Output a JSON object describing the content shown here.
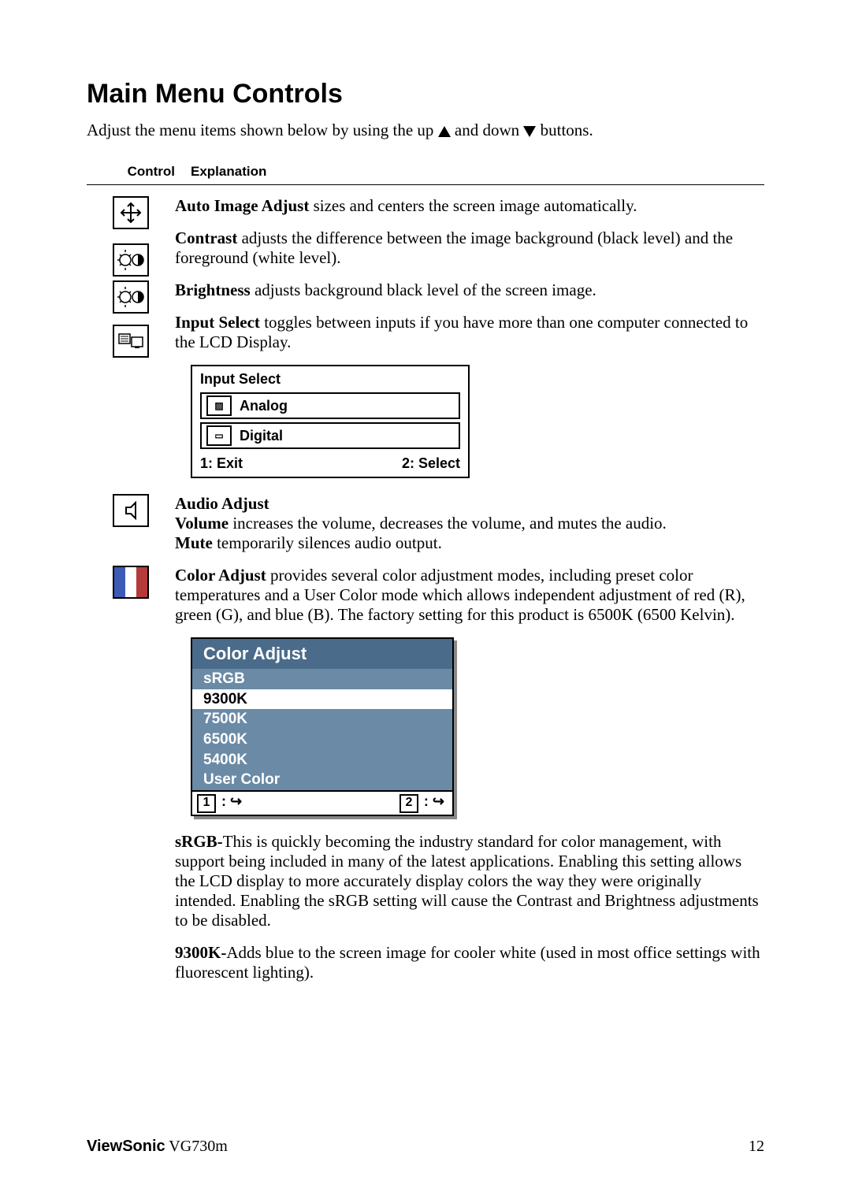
{
  "title": "Main Menu Controls",
  "intro_prefix": "Adjust the menu items shown below by using the up ",
  "intro_mid": " and down ",
  "intro_suffix": " buttons.",
  "headers": {
    "control": "Control",
    "explanation": "Explanation"
  },
  "rows": {
    "auto_image": {
      "bold": "Auto Image Adjust",
      "text": " sizes and centers the screen image automatically."
    },
    "contrast": {
      "bold": "Contrast",
      "text": " adjusts the difference between the image background  (black level) and the foreground (white level)."
    },
    "brightness": {
      "bold": "Brightness",
      "text": " adjusts background black level of the screen image."
    },
    "input_select": {
      "bold": "Input Select",
      "text": " toggles between inputs if you have more than one computer connected to the LCD Display."
    },
    "audio": {
      "title": "Audio Adjust",
      "volume_bold": "Volume",
      "volume_text": " increases the volume, decreases the volume, and mutes the audio.",
      "mute_bold": "Mute",
      "mute_text": " temporarily silences audio output."
    },
    "color": {
      "bold": "Color Adjust",
      "text": " provides several color adjustment modes, including preset color temperatures and a User Color mode which allows independent adjustment of red (R), green (G), and blue (B). The factory setting for this product is 6500K (6500 Kelvin)."
    },
    "srgb": {
      "bold": "sRGB-",
      "text": "This is quickly becoming the industry standard for color management, with support being included in many of the latest applications. Enabling this setting allows the LCD display to more accurately display colors the way they were originally intended. Enabling the sRGB setting will cause the Contrast and Brightness adjustments to be disabled."
    },
    "k9300": {
      "bold": "9300K-",
      "text": "Adds blue to the screen image for cooler white (used in most office settings with fluorescent lighting)."
    }
  },
  "input_select_box": {
    "title": "Input Select",
    "analog": "Analog",
    "digital": "Digital",
    "exit": "1: Exit",
    "select": "2: Select"
  },
  "color_box": {
    "title": "Color Adjust",
    "header_bg": "#4a6b8a",
    "items": [
      {
        "label": "sRGB",
        "bg": "#6b8aa5",
        "color": "#ffffff"
      },
      {
        "label": "9300K",
        "bg": "#ffffff",
        "color": "#000000"
      },
      {
        "label": "7500K",
        "bg": "#6b8aa5",
        "color": "#ffffff"
      },
      {
        "label": "6500K",
        "bg": "#6b8aa5",
        "color": "#ffffff"
      },
      {
        "label": "5400K",
        "bg": "#6b8aa5",
        "color": "#ffffff"
      },
      {
        "label": "User Color",
        "bg": "#6b8aa5",
        "color": "#ffffff"
      }
    ],
    "footer1_num": "1",
    "footer1_sym": " : ↪",
    "footer2_num": "2",
    "footer2_sym": " : ↪"
  },
  "footer": {
    "brand": "ViewSonic",
    "model": "   VG730m",
    "page": "12"
  }
}
